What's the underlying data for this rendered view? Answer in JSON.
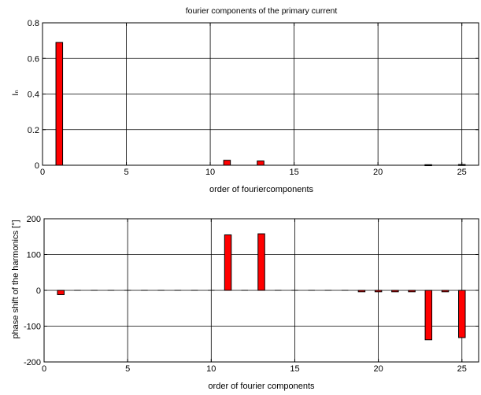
{
  "chart_data": [
    {
      "type": "bar",
      "title": "fourier components of the primary current",
      "xlabel": "order of fouriercomponents",
      "ylabel": "Iₙ",
      "xlim": [
        0,
        26
      ],
      "ylim": [
        0,
        0.8
      ],
      "xticks": [
        0,
        5,
        10,
        15,
        20,
        25
      ],
      "yticks": [
        0,
        0.2,
        0.4,
        0.6,
        0.8
      ],
      "ytick_labels": [
        "0",
        "0.2",
        "0.4",
        "0.6",
        "0.8"
      ],
      "grid": true,
      "bar_color": "#ff0000",
      "x": [
        1,
        11,
        13,
        23,
        25
      ],
      "values": [
        0.69,
        0.028,
        0.024,
        0.003,
        0.004
      ]
    },
    {
      "type": "bar",
      "title": "",
      "xlabel": "order of fourier components",
      "ylabel": "phase shift of the harmonics [°]",
      "xlim": [
        0,
        26
      ],
      "ylim": [
        -200,
        200
      ],
      "xticks": [
        0,
        5,
        10,
        15,
        20,
        25
      ],
      "yticks": [
        -200,
        -100,
        0,
        100,
        200
      ],
      "ytick_labels": [
        "-200",
        "-100",
        "0",
        "100",
        "200"
      ],
      "grid": true,
      "bar_color": "#ff0000",
      "x": [
        1,
        2,
        3,
        4,
        5,
        6,
        7,
        8,
        9,
        10,
        11,
        12,
        13,
        14,
        15,
        16,
        17,
        18,
        19,
        20,
        21,
        22,
        23,
        24,
        25
      ],
      "values": [
        -12,
        0,
        0,
        0,
        0,
        0,
        0,
        0,
        0,
        0,
        155,
        0,
        158,
        0,
        0,
        0,
        0,
        0,
        -4,
        -4,
        -4,
        -4,
        -138,
        -4,
        -132
      ]
    }
  ]
}
